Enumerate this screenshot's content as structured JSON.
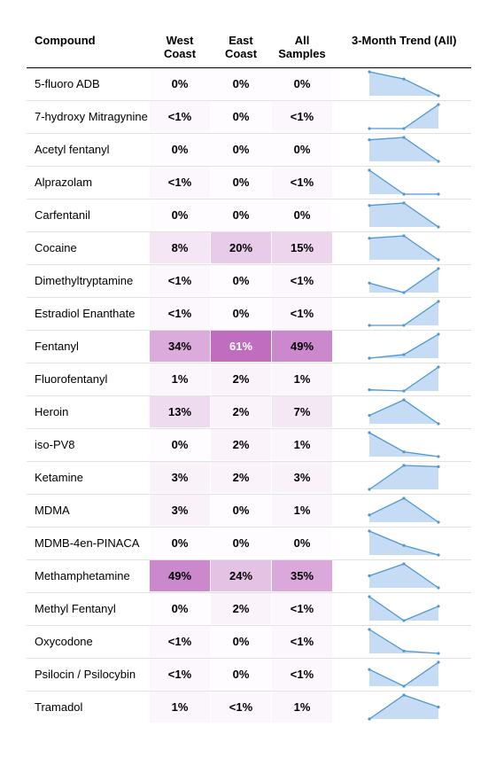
{
  "chart_data": {
    "type": "table",
    "columns": [
      "Compound",
      "West Coast",
      "East Coast",
      "All Samples",
      "3-Month Trend (All)"
    ],
    "rows": [
      {
        "compound": "5-fluoro ADB",
        "west": "0%",
        "east": "0%",
        "all": "0%",
        "west_v": 0,
        "east_v": 0,
        "all_v": 0,
        "trend": [
          1.0,
          0.7,
          0.0
        ]
      },
      {
        "compound": "7-hydroxy Mitragynine",
        "west": "<1%",
        "east": "0%",
        "all": "<1%",
        "west_v": 0.5,
        "east_v": 0,
        "all_v": 0.5,
        "trend": [
          0.0,
          0.0,
          1.0
        ]
      },
      {
        "compound": "Acetyl fentanyl",
        "west": "0%",
        "east": "0%",
        "all": "0%",
        "west_v": 0,
        "east_v": 0,
        "all_v": 0,
        "trend": [
          0.9,
          1.0,
          0.0
        ]
      },
      {
        "compound": "Alprazolam",
        "west": "<1%",
        "east": "0%",
        "all": "<1%",
        "west_v": 0.5,
        "east_v": 0,
        "all_v": 0.5,
        "trend": [
          1.0,
          0.0,
          0.0
        ]
      },
      {
        "compound": "Carfentanil",
        "west": "0%",
        "east": "0%",
        "all": "0%",
        "west_v": 0,
        "east_v": 0,
        "all_v": 0,
        "trend": [
          0.9,
          1.0,
          0.0
        ]
      },
      {
        "compound": "Cocaine",
        "west": "8%",
        "east": "20%",
        "all": "15%",
        "west_v": 8,
        "east_v": 20,
        "all_v": 15,
        "trend": [
          0.9,
          1.0,
          0.0
        ]
      },
      {
        "compound": "Dimethyltryptamine",
        "west": "<1%",
        "east": "0%",
        "all": "<1%",
        "west_v": 0.5,
        "east_v": 0,
        "all_v": 0.5,
        "trend": [
          0.4,
          0.0,
          1.0
        ]
      },
      {
        "compound": "Estradiol Enanthate",
        "west": "<1%",
        "east": "0%",
        "all": "<1%",
        "west_v": 0.5,
        "east_v": 0,
        "all_v": 0.5,
        "trend": [
          0.0,
          0.0,
          1.0
        ]
      },
      {
        "compound": "Fentanyl",
        "west": "34%",
        "east": "61%",
        "all": "49%",
        "west_v": 34,
        "east_v": 61,
        "all_v": 49,
        "trend": [
          0.0,
          0.15,
          1.0
        ]
      },
      {
        "compound": "Fluorofentanyl",
        "west": "1%",
        "east": "2%",
        "all": "1%",
        "west_v": 1,
        "east_v": 2,
        "all_v": 1,
        "trend": [
          0.05,
          0.0,
          1.0
        ]
      },
      {
        "compound": "Heroin",
        "west": "13%",
        "east": "2%",
        "all": "7%",
        "west_v": 13,
        "east_v": 2,
        "all_v": 7,
        "trend": [
          0.35,
          1.0,
          0.0
        ]
      },
      {
        "compound": "iso-PV8",
        "west": "0%",
        "east": "2%",
        "all": "1%",
        "west_v": 0,
        "east_v": 2,
        "all_v": 1,
        "trend": [
          1.0,
          0.2,
          0.0
        ]
      },
      {
        "compound": "Ketamine",
        "west": "3%",
        "east": "2%",
        "all": "3%",
        "west_v": 3,
        "east_v": 2,
        "all_v": 3,
        "trend": [
          0.0,
          1.0,
          0.95
        ]
      },
      {
        "compound": "MDMA",
        "west": "3%",
        "east": "0%",
        "all": "1%",
        "west_v": 3,
        "east_v": 0,
        "all_v": 1,
        "trend": [
          0.3,
          1.0,
          0.0
        ]
      },
      {
        "compound": "MDMB-4en-PINACA",
        "west": "0%",
        "east": "0%",
        "all": "0%",
        "west_v": 0,
        "east_v": 0,
        "all_v": 0,
        "trend": [
          1.0,
          0.4,
          0.0
        ]
      },
      {
        "compound": "Methamphetamine",
        "west": "49%",
        "east": "24%",
        "all": "35%",
        "west_v": 49,
        "east_v": 24,
        "all_v": 35,
        "trend": [
          0.5,
          1.0,
          0.0
        ]
      },
      {
        "compound": "Methyl Fentanyl",
        "west": "0%",
        "east": "2%",
        "all": "<1%",
        "west_v": 0,
        "east_v": 2,
        "all_v": 0.5,
        "trend": [
          1.0,
          0.0,
          0.6
        ]
      },
      {
        "compound": "Oxycodone",
        "west": "<1%",
        "east": "0%",
        "all": "<1%",
        "west_v": 0.5,
        "east_v": 0,
        "all_v": 0.5,
        "trend": [
          1.0,
          0.1,
          0.0
        ]
      },
      {
        "compound": "Psilocin / Psilocybin",
        "west": "<1%",
        "east": "0%",
        "all": "<1%",
        "west_v": 0.5,
        "east_v": 0,
        "all_v": 0.5,
        "trend": [
          0.7,
          0.0,
          1.0
        ]
      },
      {
        "compound": "Tramadol",
        "west": "1%",
        "east": "<1%",
        "all": "1%",
        "west_v": 1,
        "east_v": 0.5,
        "all_v": 1,
        "trend": [
          0.0,
          1.0,
          0.5
        ]
      }
    ],
    "heat_color": "#c06dc0",
    "spark_line_color": "#4f97d0",
    "spark_fill_color": "#c5dcf4"
  }
}
